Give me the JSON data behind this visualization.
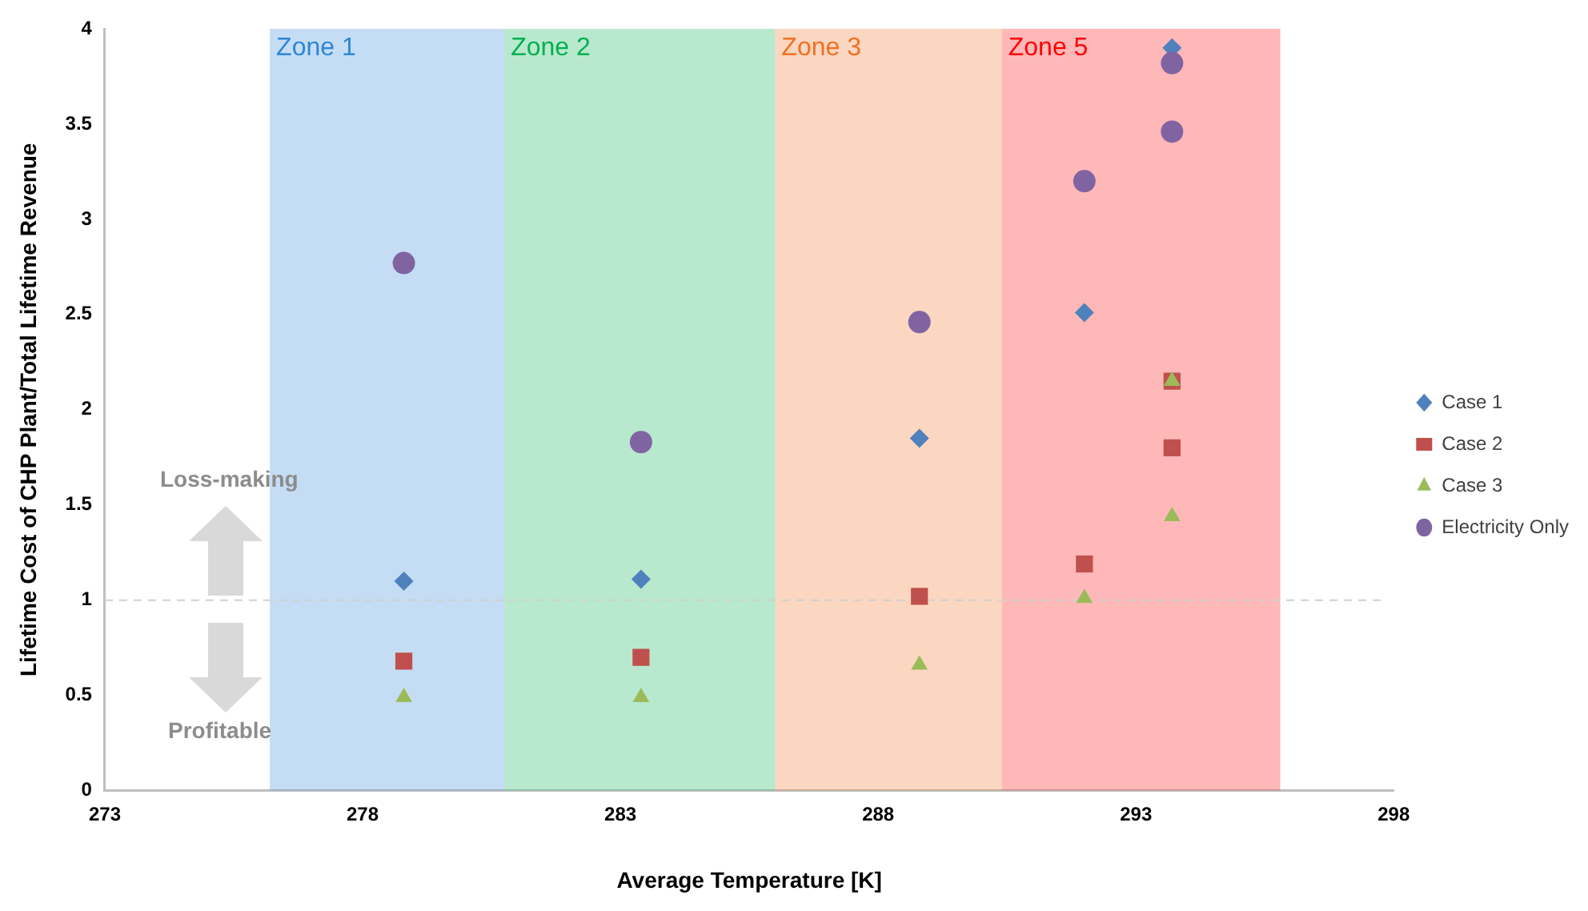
{
  "chart_data": {
    "type": "scatter",
    "xlabel": "Average Temperature [K]",
    "ylabel": "Lifetime Cost of CHP Plant/Total Lifetime Revenue",
    "xlim": [
      273,
      298
    ],
    "xticks": [
      273,
      278,
      283,
      288,
      293,
      298
    ],
    "ylim": [
      0,
      4
    ],
    "yticks": [
      0,
      0.5,
      1,
      1.5,
      2,
      2.5,
      3,
      3.5,
      4
    ],
    "grid": false,
    "legend": "right",
    "series": [
      {
        "name": "Case 1",
        "color": "#4f81bd",
        "marker": "diamond",
        "x": [
          278.8,
          283.4,
          288.8,
          292.0,
          293.7
        ],
        "values": [
          1.1,
          1.11,
          1.85,
          2.51,
          3.9
        ]
      },
      {
        "name": "Case 2",
        "color": "#c0504d",
        "marker": "square",
        "x": [
          278.8,
          283.4,
          288.8,
          292.0,
          293.7,
          293.7
        ],
        "values": [
          0.68,
          0.7,
          1.02,
          1.19,
          2.15,
          1.8
        ]
      },
      {
        "name": "Case 3",
        "color": "#9bbb59",
        "marker": "triangle",
        "x": [
          278.8,
          283.4,
          288.8,
          292.0,
          293.7,
          293.7
        ],
        "values": [
          0.49,
          0.49,
          0.66,
          1.01,
          2.15,
          1.44
        ]
      },
      {
        "name": "Electricity Only",
        "color": "#8064a2",
        "marker": "circle",
        "x": [
          278.8,
          283.4,
          288.8,
          292.0,
          293.7,
          293.7
        ],
        "values": [
          2.77,
          1.83,
          2.46,
          3.2,
          3.82,
          3.46
        ]
      }
    ],
    "bands": [
      {
        "axis": "x",
        "from": 276.2,
        "to": 280.75,
        "label": "Zone 1",
        "color": "#2e86d6"
      },
      {
        "axis": "x",
        "from": 280.75,
        "to": 286.0,
        "label": "Zone 2",
        "color": "#00b050"
      },
      {
        "axis": "x",
        "from": 286.0,
        "to": 290.4,
        "label": "Zone 3",
        "color": "#f07020"
      },
      {
        "axis": "x",
        "from": 290.4,
        "to": 295.8,
        "label": "Zone 5",
        "color": "#ff0000"
      }
    ],
    "ref_lines": [
      {
        "axis": "y",
        "value": 1,
        "color": "#d0d0d0",
        "line_style": "dashed"
      }
    ],
    "annotations": [
      "Loss-making",
      "Profitable"
    ]
  }
}
